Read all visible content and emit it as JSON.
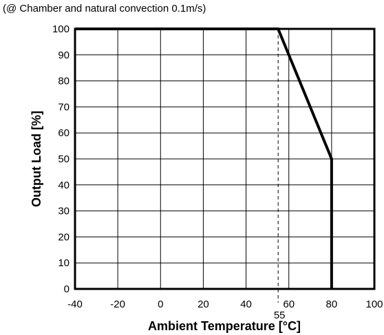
{
  "chart_data": {
    "type": "line",
    "title": "",
    "subtitle": "(@ Chamber and natural convection 0.1m/s)",
    "xlabel": "Ambient Temperature [°C]",
    "ylabel": "Output Load [%]",
    "xlim": [
      -40,
      100
    ],
    "ylim": [
      0,
      100
    ],
    "x_ticks": [
      -40,
      -20,
      0,
      20,
      40,
      60,
      80,
      100
    ],
    "y_ticks": [
      0,
      10,
      20,
      30,
      40,
      50,
      60,
      70,
      80,
      90,
      100
    ],
    "grid": true,
    "legend": "none",
    "series": [
      {
        "x": [
          -40,
          55,
          80,
          80
        ],
        "y": [
          100,
          100,
          50,
          0
        ]
      }
    ],
    "annotations": [
      {
        "label": "55",
        "x": 55,
        "style": "dashed-vertical-line"
      }
    ],
    "colors": {
      "line": "#000000",
      "grid": "#000000"
    }
  }
}
